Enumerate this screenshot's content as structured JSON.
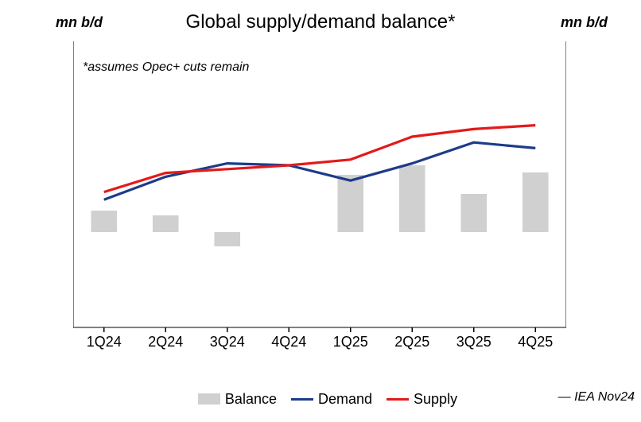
{
  "chart": {
    "type": "combo-bar-line-dual-axis",
    "title": "Global supply/demand balance*",
    "footnote": "*assumes Opec+ cuts remain",
    "source_label": "— IEA Nov24",
    "background_color": "#ffffff",
    "text_color": "#000000",
    "y_left": {
      "label": "mn b/d",
      "min": 95,
      "max": 110,
      "ticks": [
        95,
        100,
        105,
        110
      ],
      "label_fontsize": 18,
      "label_italic": true,
      "label_bold": true
    },
    "y_right": {
      "label": "mn b/d",
      "min": -2.0,
      "max": 4.0,
      "ticks": [
        -2.0,
        0.0,
        2.0,
        4.0
      ],
      "tick_format": "+0.00",
      "label_fontsize": 18,
      "label_italic": true,
      "label_bold": true
    },
    "x": {
      "categories": [
        "1Q24",
        "2Q24",
        "3Q24",
        "4Q24",
        "1Q25",
        "2Q25",
        "3Q25",
        "4Q25"
      ],
      "label_fontsize": 18
    },
    "series": {
      "balance": {
        "label": "Balance",
        "type": "bar",
        "axis": "right",
        "color": "#d0d0d0",
        "bar_width_frac": 0.42,
        "values": [
          0.45,
          0.35,
          -0.3,
          0.0,
          1.2,
          1.4,
          0.8,
          1.25
        ]
      },
      "demand": {
        "label": "Demand",
        "type": "line",
        "axis": "left",
        "color": "#1e3b8a",
        "line_width": 3.2,
        "values": [
          101.7,
          102.9,
          103.6,
          103.5,
          102.7,
          103.6,
          104.7,
          104.4
        ]
      },
      "supply": {
        "label": "Supply",
        "type": "line",
        "axis": "left",
        "color": "#e31a1a",
        "line_width": 3.2,
        "values": [
          102.1,
          103.1,
          103.3,
          103.5,
          103.8,
          105.0,
          105.4,
          105.6
        ]
      }
    },
    "legend": {
      "order": [
        "balance",
        "demand",
        "supply"
      ],
      "fontsize": 18
    },
    "axis_line_color": "#000000",
    "axis_line_width": 1.2,
    "tick_length": 6
  }
}
